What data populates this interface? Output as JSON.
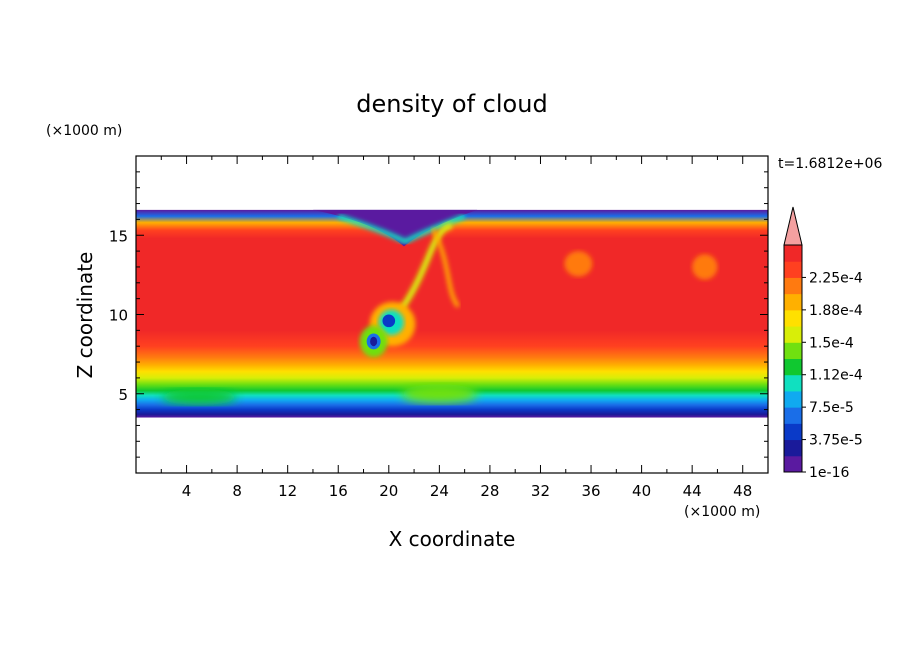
{
  "chart_data": {
    "type": "heatmap",
    "title": "density of cloud",
    "xlabel": "X coordinate",
    "ylabel": "Z coordinate",
    "x_unit": "(×1000 m)",
    "y_unit": "(×1000 m)",
    "time_label": "t=1.6812e+06",
    "xlim": [
      0,
      50
    ],
    "ylim": [
      0,
      20
    ],
    "x_ticks": [
      4,
      8,
      12,
      16,
      20,
      24,
      28,
      32,
      36,
      40,
      44,
      48
    ],
    "y_ticks": [
      5,
      10,
      15
    ],
    "colorbar": {
      "labels": [
        "1e-16",
        "3.75e-5",
        "7.5e-5",
        "1.12e-4",
        "1.5e-4",
        "1.88e-4",
        "2.25e-4"
      ],
      "levels": [
        0,
        1.88e-05,
        3.75e-05,
        5.63e-05,
        7.5e-05,
        9.38e-05,
        0.0001125,
        0.0001313,
        0.00015,
        0.0001688,
        0.0001875,
        0.0002063,
        0.000225,
        0.0002438
      ],
      "colors": [
        "#5a1aa0",
        "#1a1a9a",
        "#0a3ac8",
        "#1a6ee8",
        "#10aaf0",
        "#10e0c0",
        "#10c830",
        "#70e010",
        "#d8ee08",
        "#ffe000",
        "#ffb000",
        "#ff7a10",
        "#ff4020",
        "#f02828"
      ],
      "overflow_color": "#f4a0a0"
    },
    "cloud_extent": {
      "z_bottom": 3.5,
      "z_top": 16.6
    }
  }
}
